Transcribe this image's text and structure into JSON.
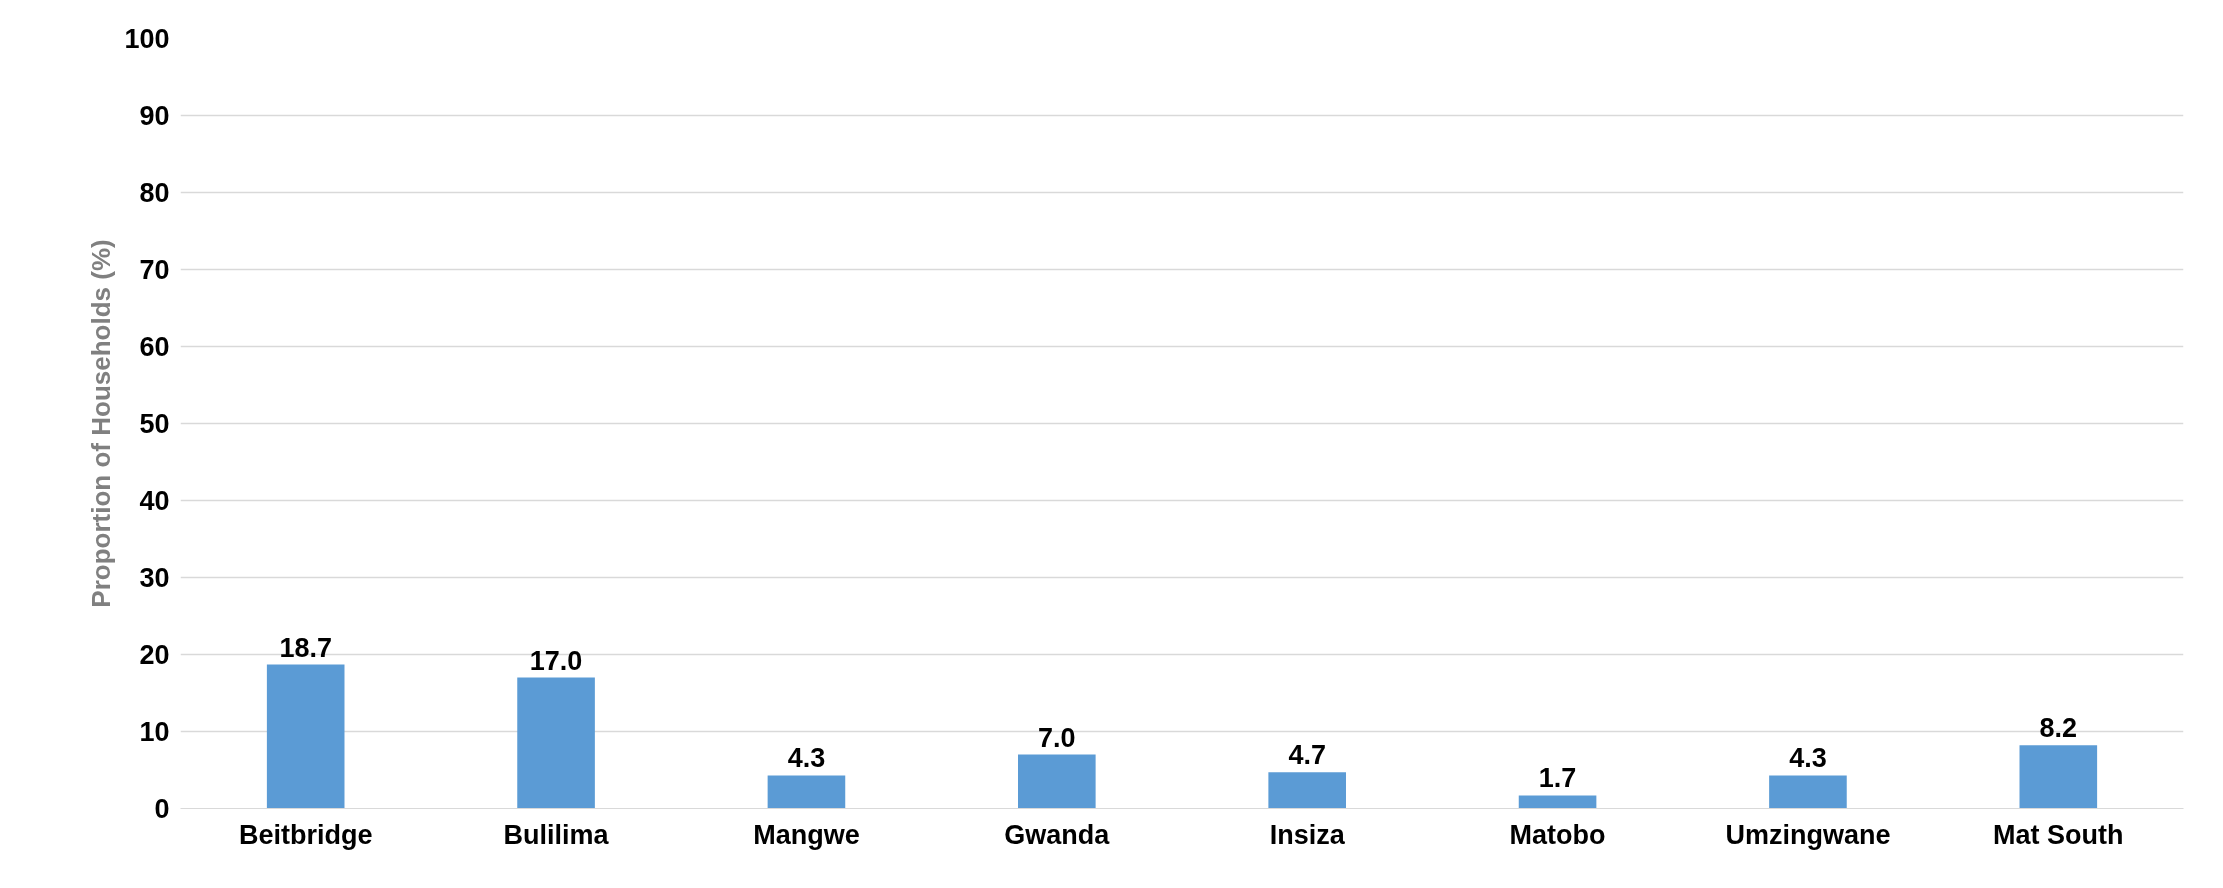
{
  "chart_data": {
    "type": "bar",
    "ylabel": "Proportion of Households (%)",
    "categories": [
      "Beitbridge",
      "Bulilima",
      "Mangwe",
      "Gwanda",
      "Insiza",
      "Matobo",
      "Umzingwane",
      "Mat South"
    ],
    "values": [
      18.7,
      17.0,
      4.3,
      7.0,
      4.7,
      1.7,
      4.3,
      8.2
    ],
    "value_labels": [
      "18.7",
      "17.0",
      "4.3",
      "7.0",
      "4.7",
      "1.7",
      "4.3",
      "8.2"
    ],
    "color": "#5b9bd5",
    "ylim": [
      0,
      100
    ],
    "yticks": [
      0,
      10,
      20,
      30,
      40,
      50,
      60,
      70,
      80,
      90,
      100
    ],
    "grid": "y"
  }
}
